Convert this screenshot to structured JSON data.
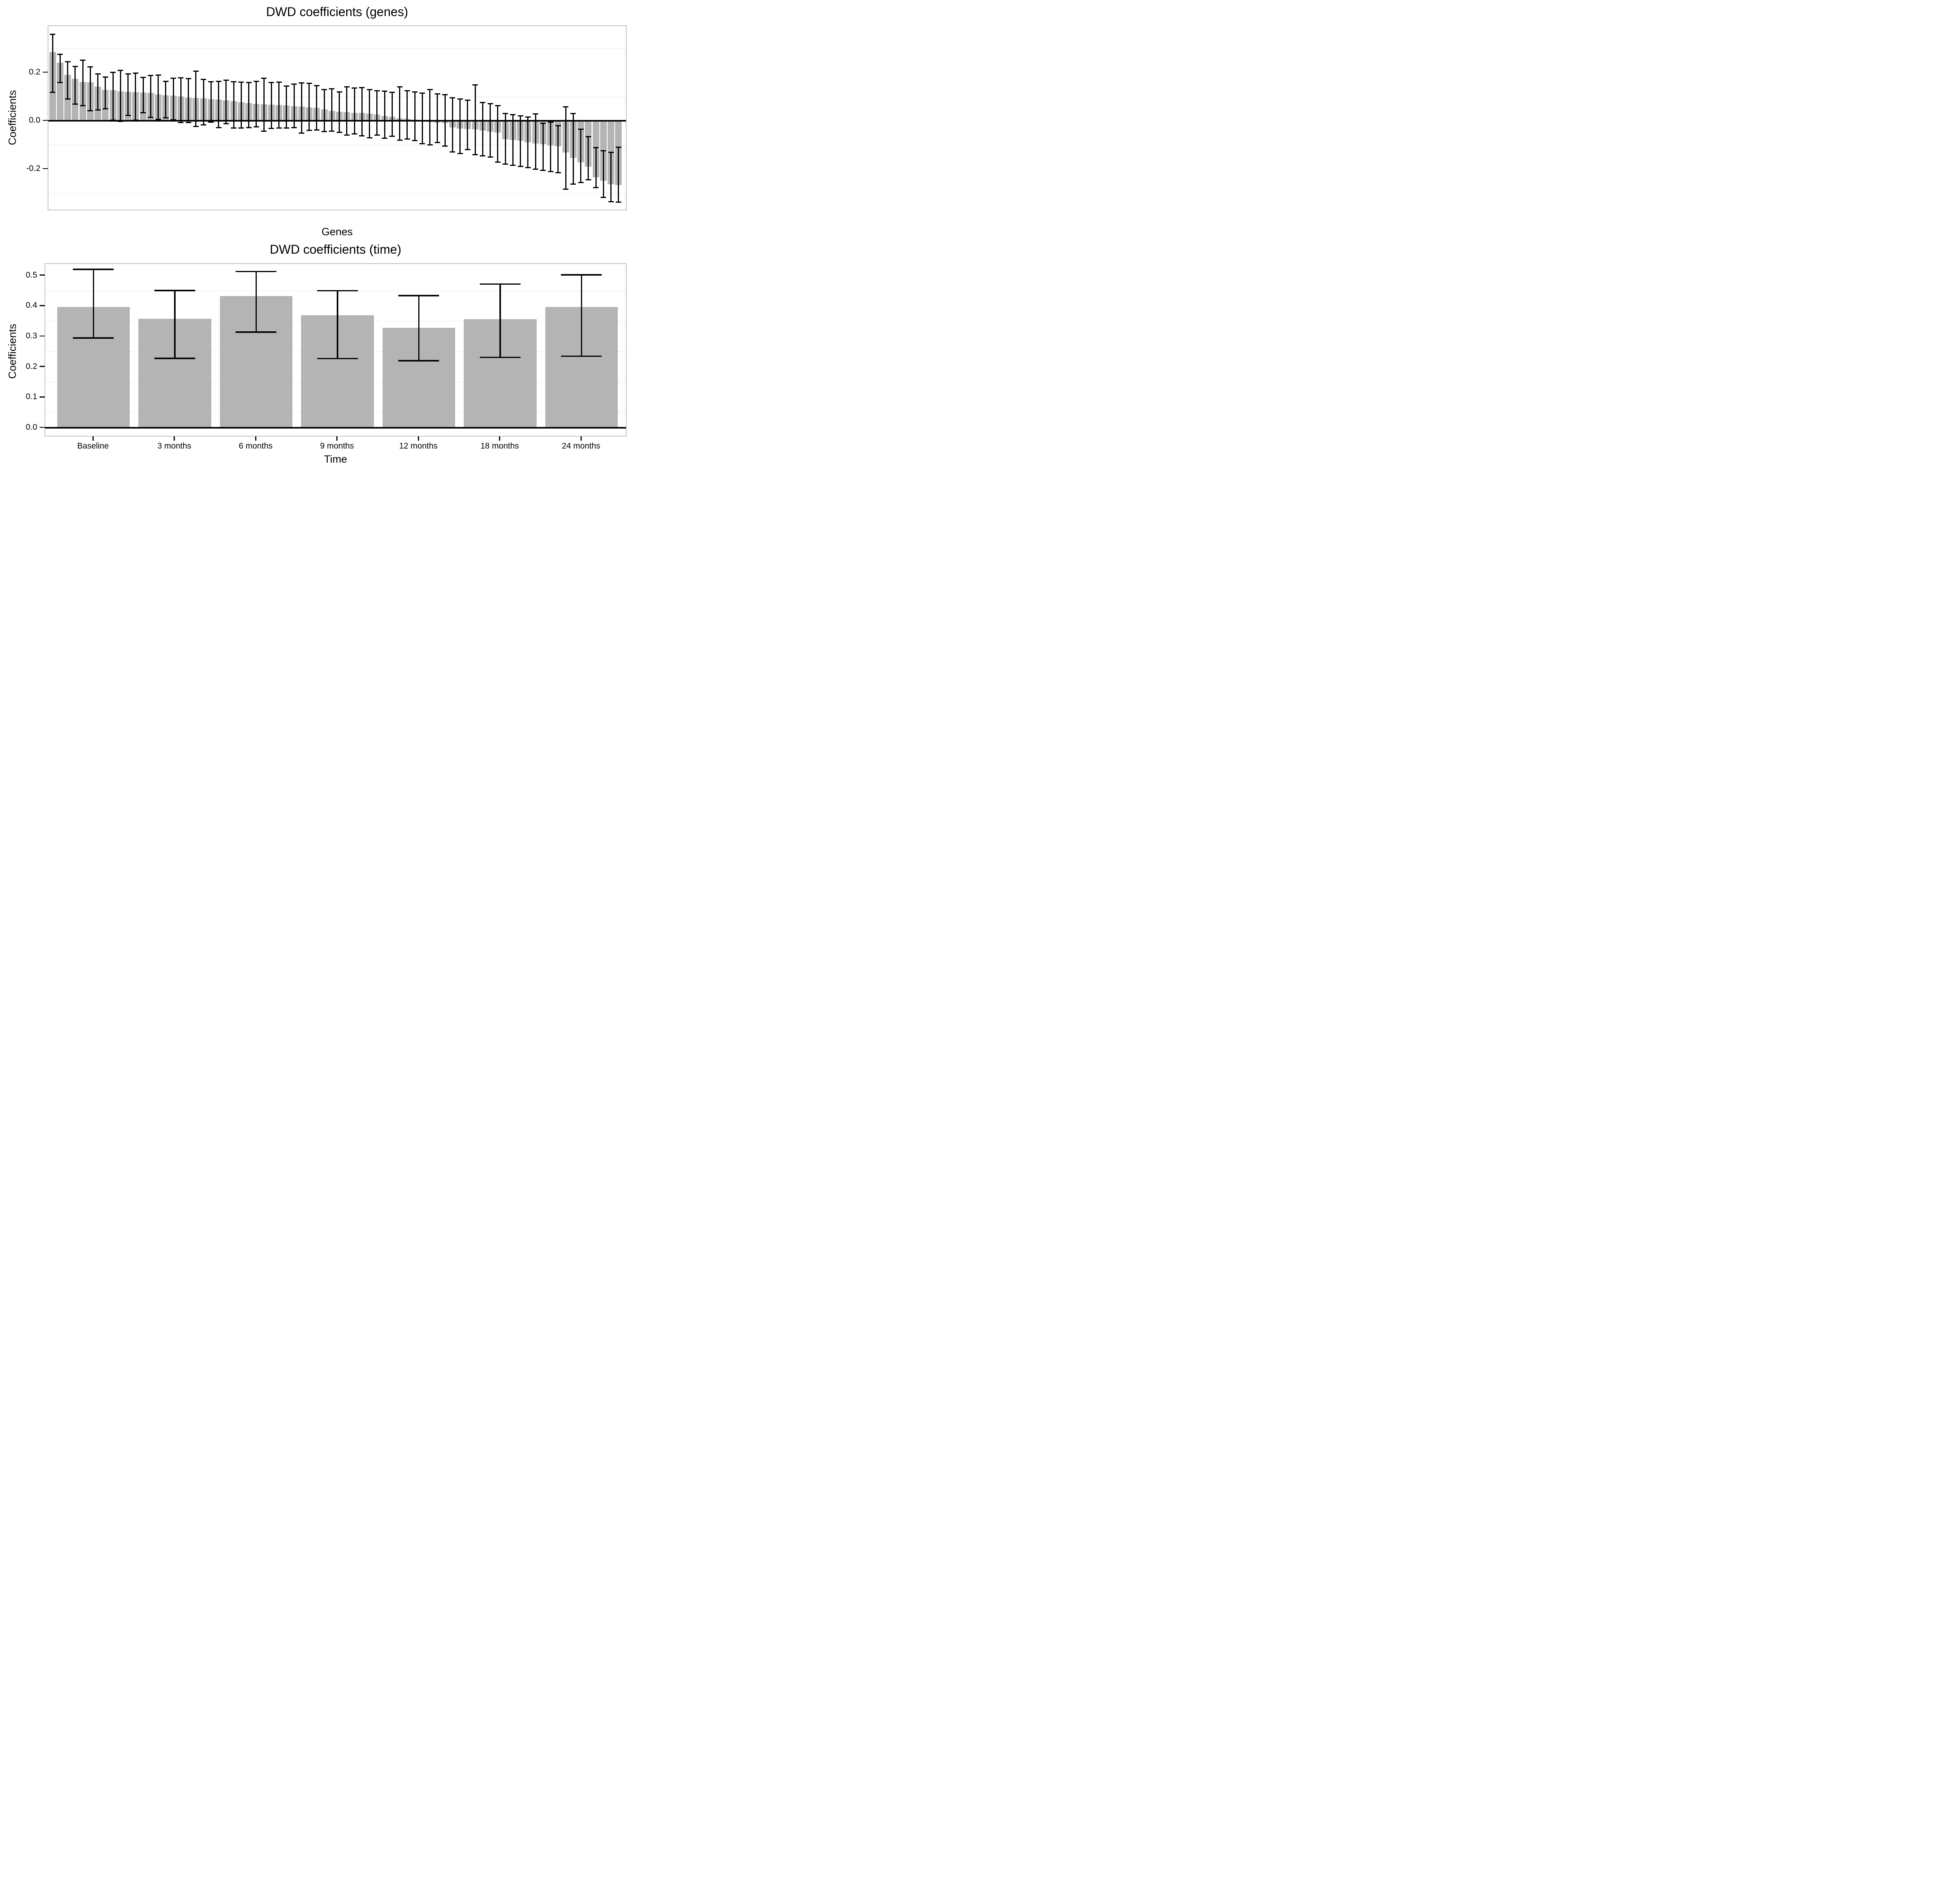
{
  "colors": {
    "bar_fill": "#b4b4b4",
    "error_bar": "#000000",
    "panel_border": "#858585",
    "minor_grid": "#f4f4f4",
    "background": "#ffffff"
  },
  "chart_data": [
    {
      "type": "bar",
      "title": "DWD coefficients (genes)",
      "xlabel": "Genes",
      "ylabel": "Coefficients",
      "legend": "none",
      "x_tick_labels_shown": false,
      "n_bars": 76,
      "ylim": [
        -0.372,
        0.394
      ],
      "yticks": [
        0.2,
        0.0,
        -0.2
      ],
      "ytick_labels": [
        "0.2",
        "0.0",
        "-0.2"
      ],
      "grid_minor": [
        0.3,
        0.1,
        -0.1,
        -0.3
      ],
      "values": [
        0.284,
        0.24,
        0.19,
        0.174,
        0.161,
        0.159,
        0.141,
        0.129,
        0.127,
        0.122,
        0.121,
        0.118,
        0.117,
        0.116,
        0.109,
        0.105,
        0.104,
        0.101,
        0.096,
        0.095,
        0.092,
        0.09,
        0.087,
        0.084,
        0.081,
        0.077,
        0.073,
        0.07,
        0.068,
        0.067,
        0.065,
        0.063,
        0.06,
        0.058,
        0.055,
        0.053,
        0.047,
        0.04,
        0.038,
        0.036,
        0.033,
        0.032,
        0.03,
        0.026,
        0.019,
        0.016,
        0.01,
        0.008,
        0.005,
        -0.003,
        -0.005,
        -0.008,
        -0.01,
        -0.027,
        -0.032,
        -0.034,
        -0.036,
        -0.041,
        -0.045,
        -0.049,
        -0.077,
        -0.08,
        -0.083,
        -0.09,
        -0.095,
        -0.098,
        -0.103,
        -0.105,
        -0.131,
        -0.154,
        -0.172,
        -0.19,
        -0.234,
        -0.249,
        -0.264,
        -0.267
      ],
      "error_high": [
        0.359,
        0.276,
        0.244,
        0.225,
        0.251,
        0.223,
        0.194,
        0.182,
        0.201,
        0.209,
        0.195,
        0.198,
        0.18,
        0.188,
        0.19,
        0.164,
        0.176,
        0.178,
        0.174,
        0.205,
        0.171,
        0.161,
        0.164,
        0.168,
        0.162,
        0.16,
        0.158,
        0.163,
        0.177,
        0.158,
        0.16,
        0.144,
        0.152,
        0.157,
        0.155,
        0.145,
        0.13,
        0.132,
        0.12,
        0.14,
        0.135,
        0.138,
        0.13,
        0.125,
        0.122,
        0.118,
        0.14,
        0.125,
        0.12,
        0.115,
        0.13,
        0.112,
        0.108,
        0.095,
        0.09,
        0.085,
        0.148,
        0.075,
        0.07,
        0.063,
        0.03,
        0.025,
        0.02,
        0.015,
        0.028,
        -0.01,
        -0.005,
        -0.02,
        0.058,
        0.03,
        -0.035,
        -0.066,
        -0.112,
        -0.125,
        -0.131,
        -0.11
      ],
      "error_low": [
        0.118,
        0.158,
        0.09,
        0.069,
        0.062,
        0.042,
        0.045,
        0.049,
        0.003,
        -0.002,
        0.022,
        0.002,
        0.033,
        0.014,
        0.006,
        0.013,
        0.004,
        -0.007,
        -0.008,
        -0.023,
        -0.017,
        -0.005,
        -0.029,
        -0.013,
        -0.03,
        -0.03,
        -0.028,
        -0.025,
        -0.043,
        -0.032,
        -0.03,
        -0.03,
        -0.028,
        -0.052,
        -0.04,
        -0.038,
        -0.045,
        -0.043,
        -0.048,
        -0.06,
        -0.055,
        -0.062,
        -0.07,
        -0.06,
        -0.072,
        -0.065,
        -0.08,
        -0.075,
        -0.082,
        -0.095,
        -0.1,
        -0.09,
        -0.105,
        -0.13,
        -0.135,
        -0.12,
        -0.14,
        -0.145,
        -0.15,
        -0.172,
        -0.18,
        -0.185,
        -0.19,
        -0.195,
        -0.2,
        -0.205,
        -0.21,
        -0.215,
        -0.283,
        -0.262,
        -0.256,
        -0.245,
        -0.278,
        -0.318,
        -0.335,
        -0.337
      ]
    },
    {
      "type": "bar",
      "title": "DWD coefficients (time)",
      "xlabel": "Time",
      "ylabel": "Coefficients",
      "legend": "none",
      "categories": [
        "Baseline",
        "3 months",
        "6 months",
        "9 months",
        "12 months",
        "18 months",
        "24 months"
      ],
      "values": [
        0.397,
        0.358,
        0.433,
        0.37,
        0.329,
        0.357,
        0.397
      ],
      "error_low": [
        0.295,
        0.228,
        0.314,
        0.227,
        0.22,
        0.231,
        0.235
      ],
      "error_high": [
        0.52,
        0.451,
        0.513,
        0.45,
        0.434,
        0.472,
        0.502
      ],
      "ylim": [
        0.0,
        0.538
      ],
      "yticks": [
        0.0,
        0.1,
        0.2,
        0.3,
        0.4,
        0.5
      ],
      "ytick_labels": [
        "0.0",
        "0.1",
        "0.2",
        "0.3",
        "0.4",
        "0.5"
      ],
      "grid_minor": [
        0.05,
        0.15,
        0.25,
        0.35,
        0.45
      ]
    }
  ]
}
